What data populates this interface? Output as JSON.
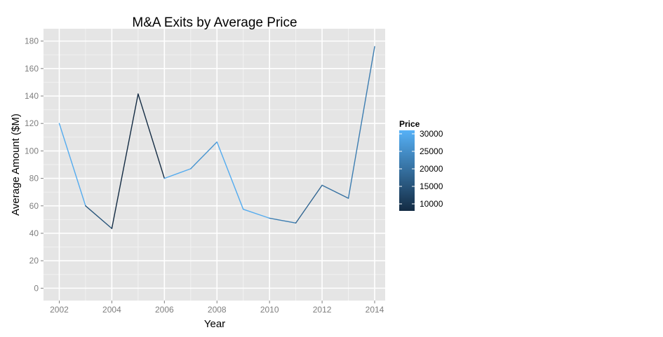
{
  "chart_data": {
    "type": "line",
    "title": "M&A Exits by Average Price",
    "xlabel": "Year",
    "ylabel": "Average Amount ($M)",
    "xlim": [
      2001.4,
      2014.4
    ],
    "ylim": [
      -9,
      189
    ],
    "x_ticks": [
      2002,
      2004,
      2006,
      2008,
      2010,
      2012,
      2014
    ],
    "x_tick_labels": [
      "2002",
      "2004",
      "2006",
      "2008",
      "2010",
      "2012",
      "2014"
    ],
    "y_ticks": [
      0,
      20,
      40,
      60,
      80,
      100,
      120,
      140,
      160,
      180
    ],
    "y_tick_labels": [
      "0",
      "20",
      "40",
      "60",
      "80",
      "100",
      "120",
      "140",
      "160",
      "180"
    ],
    "grid": true,
    "series": [
      {
        "x": [
          2002,
          2003,
          2004,
          2005,
          2006,
          2007,
          2008,
          2009,
          2010,
          2011,
          2012,
          2013,
          2014
        ],
        "y": [
          120,
          60,
          43.5,
          141.5,
          80,
          87,
          106.5,
          57.5,
          51,
          47.5,
          75,
          65.5,
          176
        ],
        "price": [
          30000,
          15000,
          8000,
          8000,
          30000,
          26000,
          30000,
          30000,
          22000,
          18000,
          20000,
          22000,
          20000
        ]
      }
    ],
    "legend": {
      "title": "Price",
      "placement": "right",
      "min": 8000,
      "max": 31000,
      "labels": [
        "30000",
        "25000",
        "20000",
        "15000",
        "10000"
      ],
      "values": [
        30000,
        25000,
        20000,
        15000,
        10000
      ],
      "color_low": "#132b43",
      "color_high": "#56b1f7"
    },
    "colors": {
      "panel_bg": "#e5e5e5",
      "grid_major": "#ffffff",
      "grid_minor": "#f2f2f2"
    }
  }
}
